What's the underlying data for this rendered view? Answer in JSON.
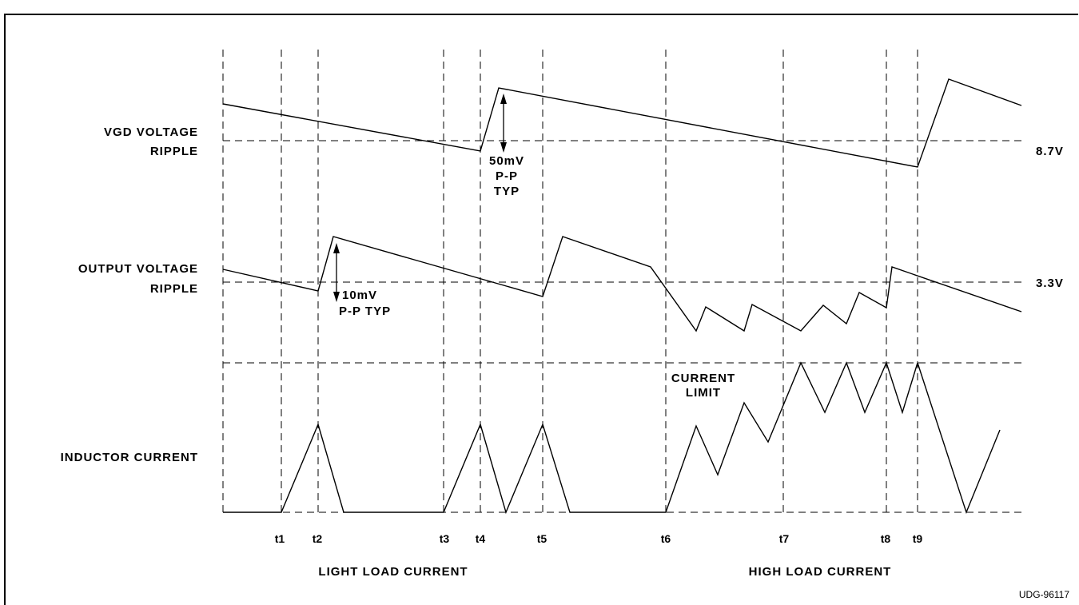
{
  "diagram": {
    "id_label": "UDG-96117",
    "signals": {
      "vgd": {
        "line1": "VGD VOLTAGE",
        "line2": "RIPPLE",
        "level": "8.7V"
      },
      "output": {
        "line1": "OUTPUT VOLTAGE",
        "line2": "RIPPLE",
        "level": "3.3V"
      },
      "inductor": {
        "line1": "INDUCTOR CURRENT"
      }
    },
    "annotations": {
      "vgd_ripple": [
        "50mV",
        "P-P",
        "TYP"
      ],
      "out_ripple": [
        "10mV",
        "P-P TYP"
      ],
      "current_limit": [
        "CURRENT",
        "LIMIT"
      ]
    },
    "time_labels": [
      "t1",
      "t2",
      "t3",
      "t4",
      "t5",
      "t6",
      "t7",
      "t8",
      "t9"
    ],
    "regions": {
      "light": "LIGHT LOAD CURRENT",
      "high": "HIGH LOAD CURRENT"
    }
  }
}
